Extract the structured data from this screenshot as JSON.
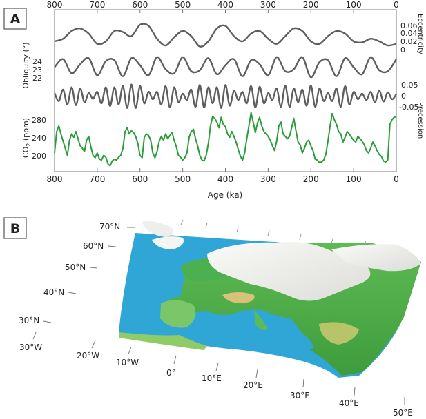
{
  "panel_a": {
    "letter": "A",
    "xlabel": "Age (ka)",
    "x_ticks": [
      "800",
      "700",
      "600",
      "500",
      "400",
      "300",
      "200",
      "100",
      "0"
    ],
    "eccentricity": {
      "label": "Eccentricity",
      "ticks": [
        "0.06",
        "0.04",
        "0.02",
        "0"
      ]
    },
    "obliquity": {
      "label": "Obliquity (°)",
      "ticks": [
        "24",
        "23",
        "22"
      ]
    },
    "precession": {
      "label": "Precession",
      "ticks": [
        "0.05",
        "0",
        "-0.05"
      ]
    },
    "co2": {
      "label_main": "CO",
      "label_sub": "2",
      "label_unit": " (ppm)",
      "ticks": [
        "280",
        "240",
        "200"
      ]
    }
  },
  "panel_b": {
    "letter": "B",
    "lat_labels": [
      "70°N",
      "60°N",
      "50°N",
      "40°N",
      "30°N"
    ],
    "lon_labels": [
      "30°W",
      "20°W",
      "10°W",
      "0°",
      "10°E",
      "20°E",
      "30°E",
      "40°E",
      "50°E"
    ]
  },
  "colors": {
    "orbital_line": "#5e5e5e",
    "co2_line": "#2a9d3a",
    "sea": "#2fa6d6",
    "land": "#4caf50",
    "ice": "#f2f2f0",
    "mountain": "#d8c27a"
  },
  "chart_data": [
    {
      "type": "line",
      "title": "",
      "xlabel": "Age (ka)",
      "ylabel": "Eccentricity",
      "xlim": [
        800,
        0
      ],
      "ylim": [
        0,
        0.06
      ],
      "series": [
        {
          "name": "Eccentricity",
          "x": [
            800,
            780,
            760,
            740,
            720,
            700,
            680,
            660,
            640,
            620,
            600,
            580,
            560,
            540,
            520,
            500,
            480,
            460,
            440,
            420,
            400,
            380,
            360,
            340,
            320,
            300,
            280,
            260,
            240,
            220,
            200,
            180,
            160,
            140,
            120,
            100,
            80,
            60,
            40,
            20,
            0
          ],
          "values": [
            0.02,
            0.025,
            0.04,
            0.045,
            0.035,
            0.015,
            0.02,
            0.04,
            0.038,
            0.03,
            0.052,
            0.05,
            0.025,
            0.012,
            0.028,
            0.04,
            0.03,
            0.01,
            0.02,
            0.045,
            0.05,
            0.03,
            0.02,
            0.035,
            0.04,
            0.025,
            0.015,
            0.03,
            0.045,
            0.04,
            0.02,
            0.015,
            0.03,
            0.04,
            0.035,
            0.02,
            0.018,
            0.025,
            0.02,
            0.012,
            0.015
          ]
        }
      ]
    },
    {
      "type": "line",
      "title": "",
      "xlabel": "Age (ka)",
      "ylabel": "Obliquity (°)",
      "xlim": [
        800,
        0
      ],
      "ylim": [
        21.8,
        24.4
      ],
      "note_period_ka": 41,
      "series": [
        {
          "name": "Obliquity",
          "x": [
            800,
            780,
            760,
            740,
            720,
            700,
            680,
            660,
            640,
            620,
            600,
            580,
            560,
            540,
            520,
            500,
            480,
            460,
            440,
            420,
            400,
            380,
            360,
            340,
            320,
            300,
            280,
            260,
            240,
            220,
            200,
            180,
            160,
            140,
            120,
            100,
            80,
            60,
            40,
            20,
            0
          ],
          "values": [
            23.2,
            24.0,
            22.6,
            23.5,
            24.1,
            22.4,
            23.8,
            23.9,
            22.3,
            24.1,
            23.4,
            22.4,
            24.2,
            23.0,
            22.6,
            24.2,
            22.8,
            22.9,
            24.1,
            22.5,
            23.4,
            24.0,
            22.3,
            23.9,
            23.5,
            22.4,
            24.2,
            22.8,
            23.0,
            24.2,
            22.2,
            23.7,
            23.9,
            22.3,
            24.1,
            23.2,
            22.5,
            24.2,
            22.9,
            22.8,
            24.0
          ]
        }
      ]
    },
    {
      "type": "line",
      "title": "",
      "xlabel": "Age (ka)",
      "ylabel": "Precession",
      "xlim": [
        800,
        0
      ],
      "ylim": [
        -0.06,
        0.06
      ],
      "note_period_ka": 22,
      "series": [
        {
          "name": "Precession",
          "x": [
            800,
            790,
            780,
            770,
            760,
            750,
            740,
            730,
            720,
            710,
            700,
            690,
            680,
            670,
            660,
            650,
            640,
            630,
            620,
            610,
            600,
            590,
            580,
            570,
            560,
            550,
            540,
            530,
            520,
            510,
            500,
            490,
            480,
            470,
            460,
            450,
            440,
            430,
            420,
            410,
            400,
            390,
            380,
            370,
            360,
            350,
            340,
            330,
            320,
            310,
            300,
            290,
            280,
            270,
            260,
            250,
            240,
            230,
            220,
            210,
            200,
            190,
            180,
            170,
            160,
            150,
            140,
            130,
            120,
            110,
            100,
            90,
            80,
            70,
            60,
            50,
            40,
            30,
            20,
            10,
            0
          ],
          "values": [
            0.015,
            -0.02,
            0.03,
            -0.035,
            0.04,
            -0.038,
            0.035,
            -0.025,
            0.015,
            -0.01,
            0.02,
            -0.03,
            0.04,
            -0.042,
            0.04,
            -0.035,
            0.045,
            -0.05,
            0.052,
            -0.05,
            0.045,
            -0.03,
            0.02,
            -0.012,
            0.02,
            -0.035,
            0.045,
            -0.048,
            0.04,
            -0.025,
            0.012,
            -0.015,
            0.03,
            -0.045,
            0.05,
            -0.048,
            0.04,
            -0.03,
            0.04,
            -0.05,
            0.05,
            -0.04,
            0.025,
            -0.015,
            0.02,
            -0.03,
            0.045,
            -0.048,
            0.042,
            -0.03,
            0.015,
            -0.015,
            0.035,
            -0.045,
            0.048,
            -0.045,
            0.035,
            -0.025,
            0.03,
            -0.04,
            0.048,
            -0.045,
            0.035,
            -0.02,
            0.015,
            -0.02,
            0.035,
            -0.045,
            0.045,
            -0.035,
            0.02,
            -0.012,
            0.012,
            -0.015,
            0.02,
            -0.025,
            0.025,
            -0.022,
            0.018,
            -0.012,
            0.01
          ]
        }
      ]
    },
    {
      "type": "line",
      "title": "",
      "xlabel": "Age (ka)",
      "ylabel": "CO2 (ppm)",
      "xlim": [
        800,
        0
      ],
      "ylim": [
        170,
        295
      ],
      "series": [
        {
          "name": "CO2",
          "x": [
            800,
            795,
            790,
            785,
            780,
            775,
            770,
            765,
            760,
            755,
            750,
            745,
            740,
            735,
            730,
            725,
            720,
            715,
            710,
            705,
            700,
            695,
            690,
            685,
            680,
            675,
            670,
            665,
            660,
            655,
            650,
            645,
            640,
            635,
            630,
            625,
            620,
            615,
            610,
            605,
            600,
            595,
            590,
            585,
            580,
            575,
            570,
            565,
            560,
            555,
            550,
            545,
            540,
            535,
            530,
            525,
            520,
            515,
            510,
            505,
            500,
            495,
            490,
            485,
            480,
            475,
            470,
            465,
            460,
            455,
            450,
            445,
            440,
            435,
            430,
            425,
            420,
            415,
            410,
            405,
            400,
            395,
            390,
            385,
            380,
            375,
            370,
            365,
            360,
            355,
            350,
            345,
            340,
            335,
            330,
            325,
            320,
            315,
            310,
            305,
            300,
            295,
            290,
            285,
            280,
            275,
            270,
            265,
            260,
            255,
            250,
            245,
            240,
            235,
            230,
            225,
            220,
            215,
            210,
            205,
            200,
            195,
            190,
            185,
            180,
            175,
            170,
            165,
            160,
            155,
            150,
            145,
            140,
            135,
            130,
            125,
            120,
            115,
            110,
            105,
            100,
            95,
            90,
            85,
            80,
            75,
            70,
            65,
            60,
            55,
            50,
            45,
            40,
            35,
            30,
            25,
            20,
            15,
            10,
            5,
            0
          ],
          "values": [
            205,
            250,
            262,
            245,
            230,
            215,
            200,
            232,
            245,
            238,
            250,
            235,
            220,
            215,
            208,
            232,
            240,
            218,
            200,
            195,
            205,
            192,
            190,
            200,
            196,
            182,
            178,
            188,
            192,
            190,
            196,
            200,
            215,
            250,
            258,
            245,
            252,
            248,
            240,
            225,
            200,
            195,
            238,
            245,
            242,
            232,
            205,
            195,
            208,
            230,
            240,
            232,
            245,
            235,
            242,
            248,
            232,
            218,
            200,
            196,
            190,
            195,
            205,
            238,
            250,
            255,
            235,
            220,
            200,
            190,
            188,
            200,
            225,
            262,
            282,
            278,
            270,
            258,
            280,
            265,
            260,
            245,
            238,
            250,
            240,
            228,
            212,
            198,
            190,
            205,
            235,
            262,
            290,
            270,
            248,
            268,
            280,
            262,
            250,
            245,
            240,
            232,
            220,
            210,
            230,
            262,
            270,
            245,
            240,
            235,
            240,
            258,
            278,
            252,
            228,
            222,
            205,
            215,
            228,
            232,
            220,
            210,
            192,
            190,
            185,
            186,
            190,
            202,
            230,
            262,
            288,
            275,
            265,
            250,
            245,
            228,
            238,
            250,
            245,
            238,
            232,
            228,
            240,
            235,
            230,
            222,
            210,
            205,
            215,
            228,
            220,
            210,
            202,
            198,
            188,
            186,
            190,
            265,
            275,
            280,
            282
          ]
        }
      ]
    }
  ]
}
